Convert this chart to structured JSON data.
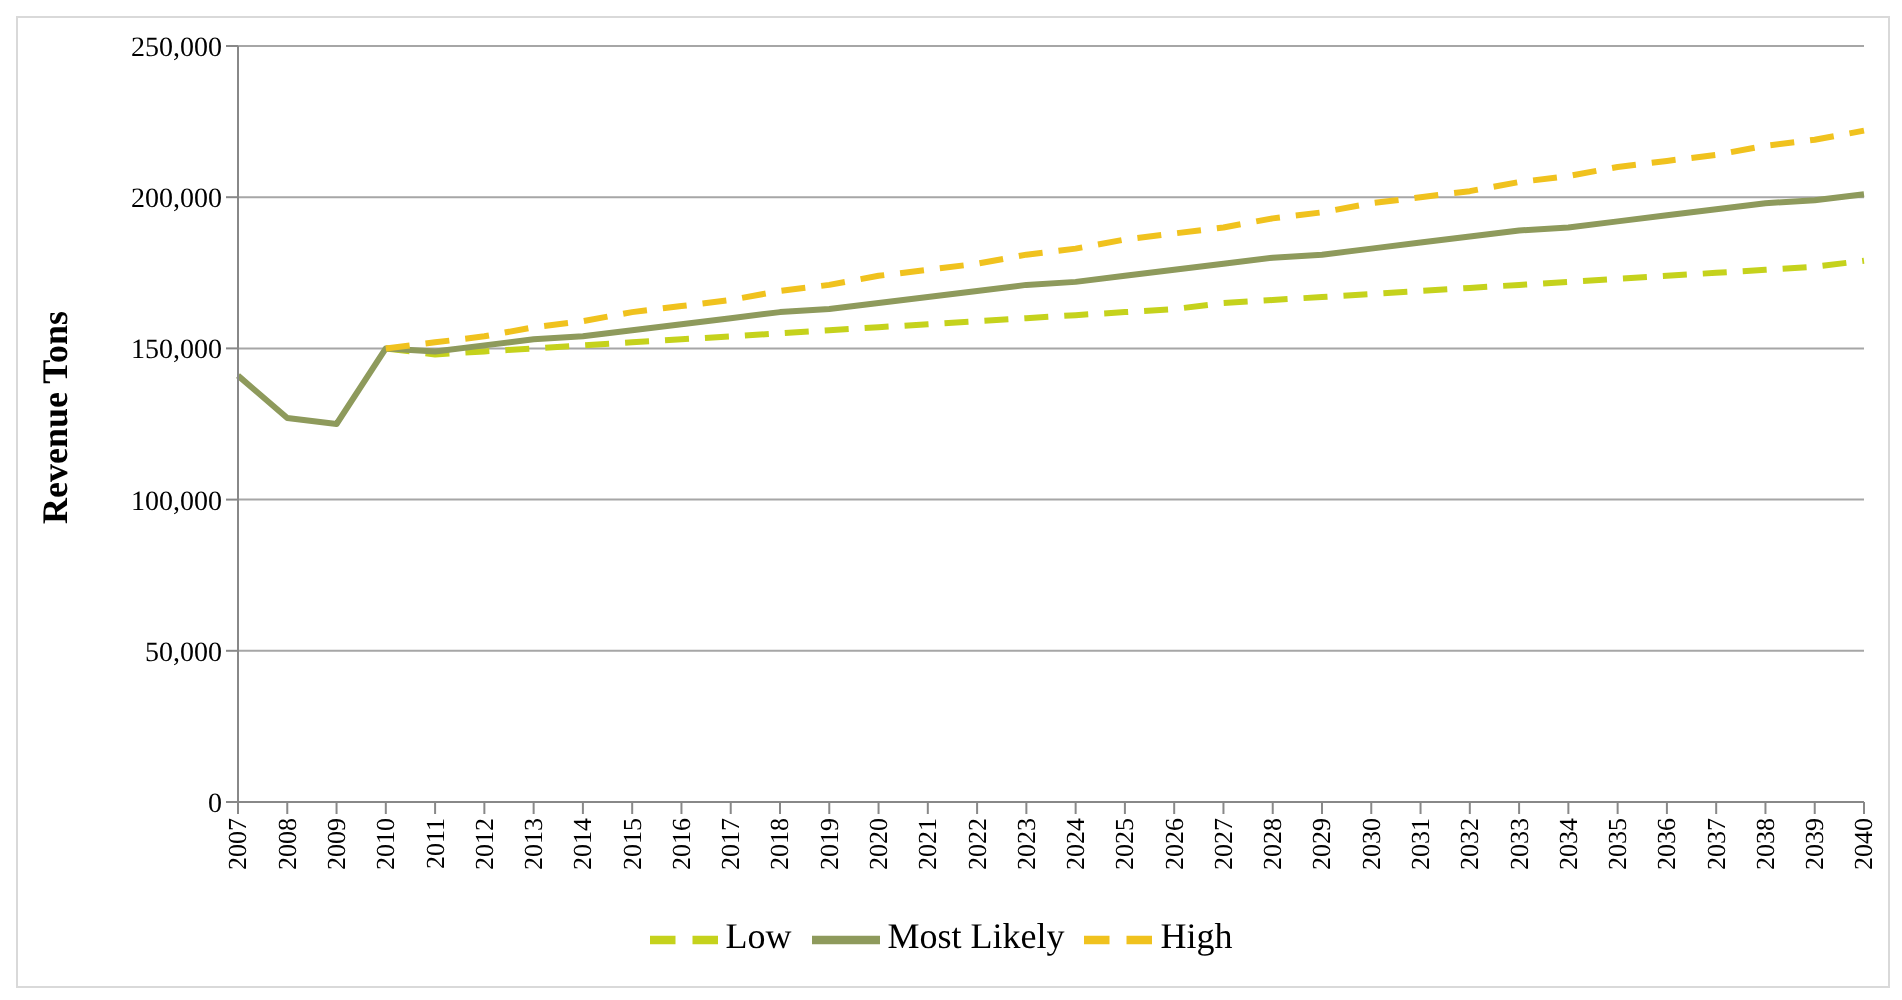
{
  "chart_data": {
    "type": "line",
    "ylabel": "Revenue Tons",
    "categories": [
      "2007",
      "2008",
      "2009",
      "2010",
      "2011",
      "2012",
      "2013",
      "2014",
      "2015",
      "2016",
      "2017",
      "2018",
      "2019",
      "2020",
      "2021",
      "2022",
      "2023",
      "2024",
      "2025",
      "2026",
      "2027",
      "2028",
      "2029",
      "2030",
      "2031",
      "2032",
      "2033",
      "2034",
      "2035",
      "2036",
      "2037",
      "2038",
      "2039",
      "2040"
    ],
    "series": [
      {
        "name": "Low",
        "color": "#c5d21c",
        "line_style": "dashed",
        "values": [
          null,
          null,
          null,
          150000,
          148000,
          149000,
          150000,
          151000,
          152000,
          153000,
          154000,
          155000,
          156000,
          157000,
          158000,
          159000,
          160000,
          161000,
          162000,
          163000,
          165000,
          166000,
          167000,
          168000,
          169000,
          170000,
          171000,
          172000,
          173000,
          174000,
          175000,
          176000,
          177000,
          179000
        ]
      },
      {
        "name": "Most Likely",
        "color": "#8e9a5c",
        "line_style": "solid",
        "values": [
          141000,
          127000,
          125000,
          150000,
          149000,
          151000,
          153000,
          154000,
          156000,
          158000,
          160000,
          162000,
          163000,
          165000,
          167000,
          169000,
          171000,
          172000,
          174000,
          176000,
          178000,
          180000,
          181000,
          183000,
          185000,
          187000,
          189000,
          190000,
          192000,
          194000,
          196000,
          198000,
          199000,
          201000
        ]
      },
      {
        "name": "High",
        "color": "#f0c21e",
        "line_style": "dashed",
        "values": [
          null,
          null,
          null,
          150000,
          152000,
          154000,
          157000,
          159000,
          162000,
          164000,
          166000,
          169000,
          171000,
          174000,
          176000,
          178000,
          181000,
          183000,
          186000,
          188000,
          190000,
          193000,
          195000,
          198000,
          200000,
          202000,
          205000,
          207000,
          210000,
          212000,
          214000,
          217000,
          219000,
          222000
        ]
      }
    ],
    "ylim": [
      0,
      250000
    ],
    "yticks": [
      0,
      {
        "value": 50000,
        "label": "50,000"
      },
      {
        "value": 100000,
        "label": "100,000"
      },
      {
        "value": 150000,
        "label": "150,000"
      },
      {
        "value": 200000,
        "label": "200,000"
      },
      {
        "value": 250000,
        "label": "250,000"
      }
    ],
    "grid": "y",
    "legend": "bottom",
    "marker": "none"
  }
}
